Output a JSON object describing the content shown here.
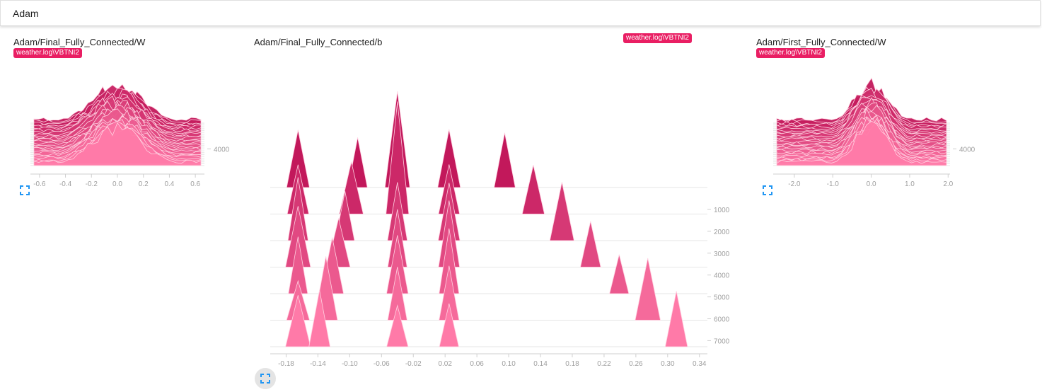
{
  "header": {
    "title": "Adam"
  },
  "colors": {
    "accent": "#e91e63",
    "deep": "#c2185b",
    "light": "#ff7aa8",
    "tick": "#9e9e9e"
  },
  "icons": {
    "expand": "fullscreen-icon"
  },
  "chart_data": [
    {
      "type": "histogram-offset",
      "title": "Adam/Final_Fully_Connected/W",
      "run_tag": "weather.log\\VBTNI2",
      "x_ticks": [
        "-0.6",
        "-0.4",
        "-0.2",
        "0.0",
        "0.2",
        "0.4",
        "0.6"
      ],
      "x_range": [
        -0.67,
        0.67
      ],
      "y_ticks": [
        "4000"
      ],
      "y_range": [
        0,
        7200
      ],
      "steps": 24,
      "shape": {
        "type": "gaussian",
        "center": 0.0,
        "width": 0.2,
        "peak": 0.85
      }
    },
    {
      "type": "histogram-offset",
      "title": "Adam/Final_Fully_Connected/b",
      "run_tag": "weather.log\\VBTNI2",
      "x_ticks": [
        "-0.18",
        "-0.14",
        "-0.10",
        "-0.06",
        "-0.02",
        "0.02",
        "0.06",
        "0.10",
        "0.14",
        "0.18",
        "0.22",
        "0.26",
        "0.30",
        "0.34"
      ],
      "x_range": [
        -0.2,
        0.35
      ],
      "y_ticks": [
        "1000",
        "2000",
        "3000",
        "4000",
        "5000",
        "6000",
        "7000"
      ],
      "y_range": [
        0,
        7600
      ],
      "steps": 7,
      "spikes": [
        {
          "center": -0.165,
          "drift": 0.0
        },
        {
          "center": -0.09,
          "drift": -0.008
        },
        {
          "center": -0.04,
          "drift": 0.0
        },
        {
          "center": 0.025,
          "drift": 0.0
        },
        {
          "center": 0.095,
          "drift": 0.03
        }
      ]
    },
    {
      "type": "histogram-offset",
      "title": "Adam/First_Fully_Connected/W",
      "run_tag": "weather.log\\VBTNI2",
      "x_ticks": [
        "-2.0",
        "-1.0",
        "0.0",
        "1.0",
        "2.0"
      ],
      "x_range": [
        -2.55,
        2.05
      ],
      "y_ticks": [
        "4000"
      ],
      "y_range": [
        0,
        7200
      ],
      "steps": 24,
      "shape": {
        "type": "gaussian",
        "center": 0.0,
        "width": 0.45,
        "peak": 0.9
      }
    }
  ]
}
